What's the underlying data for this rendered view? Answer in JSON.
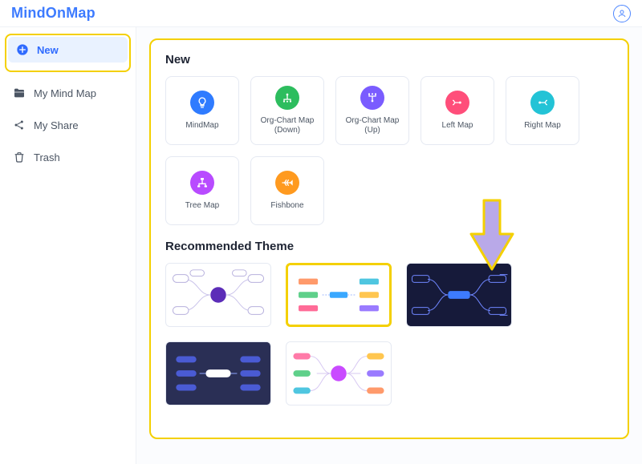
{
  "brand": {
    "name": "MindOnMap",
    "color": "#3d7bff"
  },
  "sidebar": {
    "items": [
      {
        "label": "New",
        "icon": "plus-circle-icon",
        "active": true
      },
      {
        "label": "My Mind Map",
        "icon": "folder-icon",
        "active": false
      },
      {
        "label": "My Share",
        "icon": "share-icon",
        "active": false
      },
      {
        "label": "Trash",
        "icon": "trash-icon",
        "active": false
      }
    ]
  },
  "panel": {
    "new_title": "New",
    "templates": [
      {
        "label": "MindMap",
        "color": "#2f7bff",
        "glyph": "bulb"
      },
      {
        "label": "Org-Chart Map (Down)",
        "color": "#2dbd5e",
        "glyph": "orgdown"
      },
      {
        "label": "Org-Chart Map (Up)",
        "color": "#7a5cff",
        "glyph": "orgup"
      },
      {
        "label": "Left Map",
        "color": "#ff4e7a",
        "glyph": "left"
      },
      {
        "label": "Right Map",
        "color": "#23c3d6",
        "glyph": "right"
      },
      {
        "label": "Tree Map",
        "color": "#b84bff",
        "glyph": "tree"
      },
      {
        "label": "Fishbone",
        "color": "#ff9a1f",
        "glyph": "fish"
      }
    ],
    "themes_title": "Recommended Theme",
    "themes": [
      {
        "bg": "#ffffff",
        "dark": false,
        "accent": "#5c2db8",
        "style": "radial",
        "selected": false
      },
      {
        "bg": "#ffffff",
        "dark": false,
        "accent": "#3aa8ff",
        "style": "barsLR",
        "selected": true
      },
      {
        "bg": "#161a3a",
        "dark": true,
        "accent": "#3d7bff",
        "style": "linesLR",
        "selected": false
      },
      {
        "bg": "#2a2f55",
        "dark": true,
        "accent": "#ffffff",
        "style": "barsLR2",
        "selected": false
      },
      {
        "bg": "#ffffff",
        "dark": false,
        "accent": "#c94bff",
        "style": "radial2",
        "selected": false
      }
    ],
    "arrow_color_fill": "#b9a9e8",
    "arrow_color_stroke": "#f4d000"
  },
  "colors": {
    "highlight": "#f4d000",
    "card_border": "#e5e9f2",
    "text_muted": "#4b5563"
  }
}
